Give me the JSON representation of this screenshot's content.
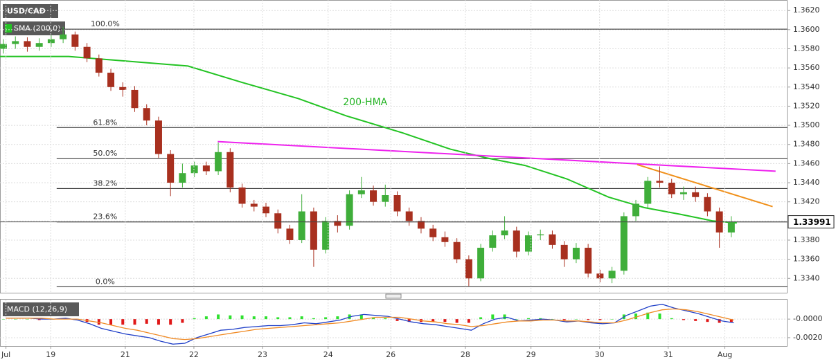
{
  "chart_data": [
    {
      "type": "candlestick",
      "title": "USD/CAD",
      "up_color": "#3fae3a",
      "down_color": "#a8301f",
      "xlim": [
        0,
        264
      ],
      "ylim": [
        1.3325,
        1.3631
      ],
      "yticks": [
        {
          "value": 1.362,
          "label": "1.3620"
        },
        {
          "value": 1.36,
          "label": "1.3600"
        },
        {
          "value": 1.358,
          "label": "1.3580"
        },
        {
          "value": 1.356,
          "label": "1.3560"
        },
        {
          "value": 1.354,
          "label": "1.3540"
        },
        {
          "value": 1.352,
          "label": "1.3520"
        },
        {
          "value": 1.35,
          "label": "1.3500"
        },
        {
          "value": 1.348,
          "label": "1.3480"
        },
        {
          "value": 1.346,
          "label": "1.3460"
        },
        {
          "value": 1.344,
          "label": "1.3440"
        },
        {
          "value": 1.342,
          "label": "1.3420"
        },
        {
          "value": 1.34,
          "label": "1.3400"
        },
        {
          "value": 1.338,
          "label": "1.3380"
        },
        {
          "value": 1.336,
          "label": "1.3360"
        },
        {
          "value": 1.334,
          "label": "1.3340"
        }
      ],
      "grid": true,
      "x": [
        0,
        4,
        8,
        12,
        16,
        20,
        24,
        28,
        32,
        36,
        40,
        44,
        48,
        52,
        56,
        60,
        64,
        68,
        72,
        76,
        80,
        84,
        88,
        92,
        96,
        100,
        104,
        108,
        112,
        116,
        120,
        124,
        128,
        132,
        136,
        140,
        144,
        148,
        152,
        156,
        160,
        164,
        168,
        172,
        176,
        180,
        184,
        188,
        192,
        196,
        200,
        204,
        208,
        212,
        216,
        220,
        224,
        228,
        232,
        236,
        240,
        244
      ],
      "open": [
        1.358,
        1.3585,
        1.3588,
        1.3582,
        1.3586,
        1.359,
        1.3595,
        1.3582,
        1.357,
        1.3555,
        1.354,
        1.3537,
        1.3518,
        1.3505,
        1.347,
        1.344,
        1.345,
        1.3458,
        1.3452,
        1.3472,
        1.3435,
        1.3418,
        1.3415,
        1.3408,
        1.3392,
        1.338,
        1.341,
        1.337,
        1.34,
        1.3395,
        1.3428,
        1.3432,
        1.342,
        1.3427,
        1.341,
        1.34,
        1.3392,
        1.3383,
        1.3378,
        1.336,
        1.334,
        1.3372,
        1.3385,
        1.339,
        1.3368,
        1.3385,
        1.3386,
        1.3375,
        1.336,
        1.3372,
        1.3345,
        1.334,
        1.3348,
        1.3405,
        1.3418,
        1.3442,
        1.344,
        1.3428,
        1.343,
        1.3425,
        1.341,
        1.3388
      ],
      "high": [
        1.359,
        1.3593,
        1.3592,
        1.3591,
        1.3594,
        1.3603,
        1.3598,
        1.3586,
        1.3574,
        1.3559,
        1.3545,
        1.3541,
        1.3522,
        1.3509,
        1.3474,
        1.346,
        1.3462,
        1.3462,
        1.3482,
        1.3476,
        1.3439,
        1.3422,
        1.3419,
        1.3412,
        1.3396,
        1.3428,
        1.3414,
        1.3404,
        1.3406,
        1.3432,
        1.3446,
        1.3437,
        1.3438,
        1.3431,
        1.3414,
        1.3404,
        1.3396,
        1.3389,
        1.3382,
        1.3364,
        1.3376,
        1.339,
        1.3405,
        1.3394,
        1.3389,
        1.3391,
        1.339,
        1.3379,
        1.3377,
        1.3376,
        1.3349,
        1.3352,
        1.3409,
        1.3422,
        1.3446,
        1.3457,
        1.3444,
        1.3436,
        1.3436,
        1.3429,
        1.3414,
        1.3405
      ],
      "low": [
        1.3575,
        1.358,
        1.3577,
        1.3578,
        1.3582,
        1.3586,
        1.3578,
        1.3566,
        1.3551,
        1.3536,
        1.353,
        1.3514,
        1.35,
        1.3466,
        1.3426,
        1.3435,
        1.3446,
        1.3448,
        1.3448,
        1.343,
        1.3414,
        1.341,
        1.3404,
        1.3387,
        1.3376,
        1.3377,
        1.3352,
        1.3366,
        1.3388,
        1.3391,
        1.3424,
        1.3416,
        1.3415,
        1.3405,
        1.3395,
        1.3387,
        1.3379,
        1.3373,
        1.3356,
        1.3332,
        1.3337,
        1.3368,
        1.3381,
        1.3362,
        1.3364,
        1.338,
        1.3371,
        1.3352,
        1.3356,
        1.3341,
        1.3336,
        1.3335,
        1.3344,
        1.34,
        1.3414,
        1.3435,
        1.3424,
        1.3422,
        1.342,
        1.3405,
        1.3372,
        1.3383
      ],
      "close": [
        1.3585,
        1.3588,
        1.3582,
        1.3586,
        1.359,
        1.3595,
        1.3582,
        1.357,
        1.3555,
        1.354,
        1.3537,
        1.3518,
        1.3505,
        1.347,
        1.344,
        1.345,
        1.3458,
        1.3452,
        1.3472,
        1.3435,
        1.3418,
        1.3415,
        1.3408,
        1.3392,
        1.338,
        1.341,
        1.337,
        1.34,
        1.3395,
        1.3428,
        1.3432,
        1.342,
        1.3427,
        1.341,
        1.34,
        1.3392,
        1.3383,
        1.3378,
        1.336,
        1.334,
        1.3372,
        1.3385,
        1.339,
        1.3368,
        1.3385,
        1.3386,
        1.3375,
        1.336,
        1.3372,
        1.3345,
        1.334,
        1.3348,
        1.3405,
        1.3418,
        1.3442,
        1.344,
        1.3428,
        1.343,
        1.3425,
        1.341,
        1.3388,
        1.33991
      ],
      "series": [
        {
          "name": "SMA (200,0)",
          "color": "#22c322",
          "x": [
            0,
            23,
            39,
            63,
            81,
            100,
            116,
            135,
            151,
            163,
            176,
            190,
            204,
            216,
            228,
            239,
            247
          ],
          "values": [
            1.3572,
            1.3572,
            1.3568,
            1.3562,
            1.3545,
            1.3528,
            1.351,
            1.3492,
            1.3475,
            1.3466,
            1.3458,
            1.3444,
            1.3425,
            1.3414,
            1.3407,
            1.34,
            1.3398
          ]
        }
      ],
      "trendlines": [
        {
          "color": "#ee22ee",
          "x": [
            73,
            260
          ],
          "values": [
            1.3483,
            1.3452
          ]
        },
        {
          "color": "#f0901a",
          "x": [
            213.6,
            259
          ],
          "values": [
            1.3459,
            1.3415
          ]
        }
      ],
      "fib_levels": [
        {
          "value": 1.36005,
          "label": "100.0%"
        },
        {
          "value": 1.34977,
          "label": "61.8%"
        },
        {
          "value": 1.34652,
          "label": "50.0%"
        },
        {
          "value": 1.3434,
          "label": "38.2%"
        },
        {
          "value": 1.3399,
          "label": "23.6%"
        },
        {
          "value": 1.33313,
          "label": "0.0%"
        }
      ],
      "fib_start": 19,
      "annotation": {
        "text": "200-HMA",
        "x": 115,
        "y": 1.35238
      },
      "price_tag": {
        "value": 1.33991,
        "label": "1.33991"
      }
    },
    {
      "type": "macd",
      "title": "MACD (12,26,9)",
      "xlim": [
        0,
        264
      ],
      "ylim": [
        -0.0029,
        0.0021
      ],
      "yticks": [
        {
          "value": 0,
          "label": "-0.0000"
        },
        {
          "value": -0.002,
          "label": "-0.0020"
        }
      ],
      "xticks": [
        {
          "value": 2,
          "label": "Jul"
        },
        {
          "value": 17,
          "label": "19"
        },
        {
          "value": 42,
          "label": "21"
        },
        {
          "value": 65,
          "label": "22"
        },
        {
          "value": 88,
          "label": "23"
        },
        {
          "value": 110,
          "label": "24"
        },
        {
          "value": 131,
          "label": "26"
        },
        {
          "value": 156,
          "label": "28"
        },
        {
          "value": 178,
          "label": "29"
        },
        {
          "value": 201,
          "label": "30"
        },
        {
          "value": 224,
          "label": "31"
        },
        {
          "value": 243,
          "label": "Aug"
        }
      ],
      "grid": true,
      "x": [
        0,
        4,
        8,
        12,
        16,
        20,
        24,
        28,
        32,
        36,
        40,
        44,
        48,
        52,
        56,
        60,
        64,
        68,
        72,
        76,
        80,
        84,
        88,
        92,
        96,
        100,
        104,
        108,
        112,
        116,
        120,
        124,
        128,
        132,
        136,
        140,
        144,
        148,
        152,
        156,
        160,
        164,
        168,
        172,
        176,
        180,
        184,
        188,
        192,
        196,
        200,
        204,
        208,
        212,
        216,
        220,
        224,
        228,
        232,
        236,
        240,
        244
      ],
      "hist_up_color": "#2fe02f",
      "hist_down_color": "#e01818",
      "histogram": [
        0,
        0,
        0,
        -0.0001,
        0,
        0.0001,
        -0.0001,
        -0.0003,
        -0.0006,
        -0.0006,
        -0.0006,
        -0.0006,
        -0.0005,
        -0.0006,
        -0.0006,
        -0.0004,
        0.0001,
        0.0003,
        0.0005,
        0.0004,
        0.0004,
        0.0003,
        0.0003,
        0.0002,
        0.0002,
        0.0003,
        0.0001,
        0.0002,
        0.0003,
        0.0005,
        0.0005,
        0.0002,
        0.0001,
        -0.0002,
        -0.0003,
        -0.0003,
        -0.0003,
        -0.0003,
        -0.0004,
        -0.0004,
        0.0002,
        0.0005,
        0.0005,
        0,
        0.0001,
        0.0001,
        0,
        -0.0001,
        0,
        -0.0001,
        -0.0001,
        0,
        0.0005,
        0.0006,
        0.0007,
        0.0006,
        0.0001,
        -0.0001,
        -0.0002,
        -0.0003,
        -0.0004,
        -0.0003
      ],
      "lines": [
        {
          "color": "#2040c8",
          "values": [
            0.0001,
            0.0001,
            0.0001,
            0,
            0,
            0.0001,
            -0.0001,
            -0.0005,
            -0.001,
            -0.0013,
            -0.0016,
            -0.0018,
            -0.002,
            -0.0024,
            -0.0027,
            -0.0026,
            -0.002,
            -0.0016,
            -0.0012,
            -0.0011,
            -0.0009,
            -0.0008,
            -0.0007,
            -0.0007,
            -0.0006,
            -0.0004,
            -0.0005,
            -0.0003,
            -0.0001,
            0.0003,
            0.0005,
            0.0004,
            0.0003,
            0,
            -0.0003,
            -0.0005,
            -0.0006,
            -0.0008,
            -0.001,
            -0.0012,
            -0.0005,
            0,
            0.0002,
            -0.0002,
            -0.0001,
            0,
            -0.0001,
            -0.0003,
            -0.0002,
            -0.0004,
            -0.0005,
            -0.0004,
            0.0004,
            0.0009,
            0.0014,
            0.0016,
            0.0012,
            0.0009,
            0.0006,
            0.0002,
            -0.0002,
            -0.0004
          ]
        },
        {
          "color": "#f08a24",
          "values": [
            0.0001,
            0.0001,
            0.0001,
            0.0001,
            0,
            0,
            0,
            -0.0002,
            -0.0004,
            -0.0007,
            -0.001,
            -0.0012,
            -0.0015,
            -0.0018,
            -0.0021,
            -0.0022,
            -0.0021,
            -0.0019,
            -0.0017,
            -0.0015,
            -0.0013,
            -0.0011,
            -0.001,
            -0.0009,
            -0.0008,
            -0.0007,
            -0.0006,
            -0.0005,
            -0.0004,
            -0.0002,
            0,
            0.0002,
            0.0002,
            0.0002,
            0,
            -0.0002,
            -0.0003,
            -0.0005,
            -0.0006,
            -0.0008,
            -0.0007,
            -0.0005,
            -0.0003,
            -0.0002,
            -0.0002,
            -0.0001,
            -0.0001,
            -0.0002,
            -0.0002,
            -0.0003,
            -0.0004,
            -0.0004,
            -0.0001,
            0.0003,
            0.0007,
            0.001,
            0.0011,
            0.001,
            0.0008,
            0.0005,
            0.0002,
            -0.0001
          ]
        }
      ]
    }
  ]
}
